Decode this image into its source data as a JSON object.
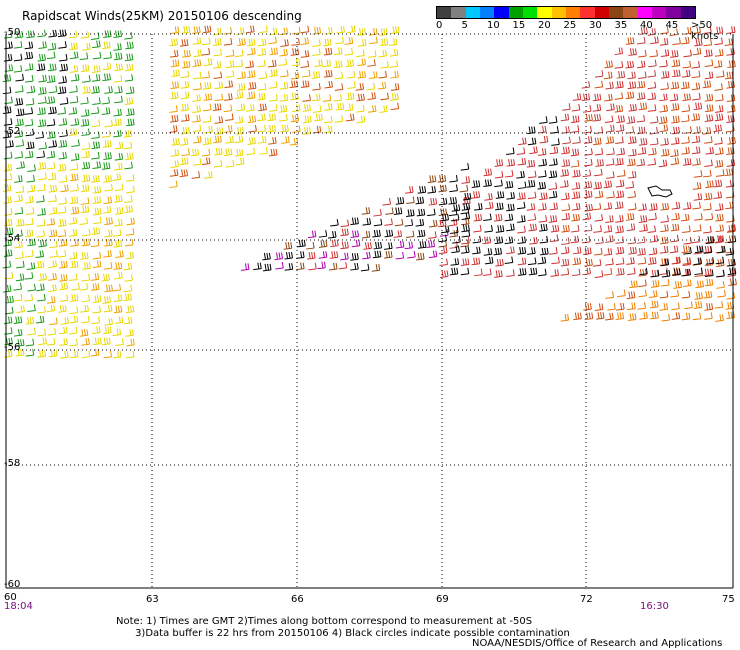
{
  "title": "Rapidscat Winds(25KM) 20150106 descending",
  "legend": {
    "colors": [
      "#404040",
      "#808080",
      "#00c8ff",
      "#0080ff",
      "#0000ff",
      "#00a000",
      "#00e000",
      "#ffff00",
      "#ffc000",
      "#ff8000",
      "#ff3030",
      "#d00000",
      "#8b4513",
      "#c06030",
      "#ff00ff",
      "#c000c0",
      "#8000a0",
      "#400080"
    ],
    "ticks": [
      "0",
      "5",
      "10",
      "15",
      "20",
      "25",
      "30",
      "35",
      "40",
      "45",
      ">50 knots"
    ]
  },
  "axes": {
    "lat_labels": [
      "-50",
      "-52",
      "-54",
      "-56",
      "-58",
      "-60"
    ],
    "lon_labels": [
      "60",
      "63",
      "66",
      "69",
      "72",
      "75"
    ]
  },
  "times": {
    "left": "18:04",
    "right": "16:30"
  },
  "note": "Note: 1) Times are GMT 2)Times along bottom correspond to measurement at -50S\n      3)Data buffer is 22 hrs from 20150106 4) Black circles indicate possible contamination",
  "credit": "NOAA/NESDIS/Office of Research and Applications",
  "colors": {
    "grid": "#000000",
    "time_label": "#7a0a7a"
  }
}
